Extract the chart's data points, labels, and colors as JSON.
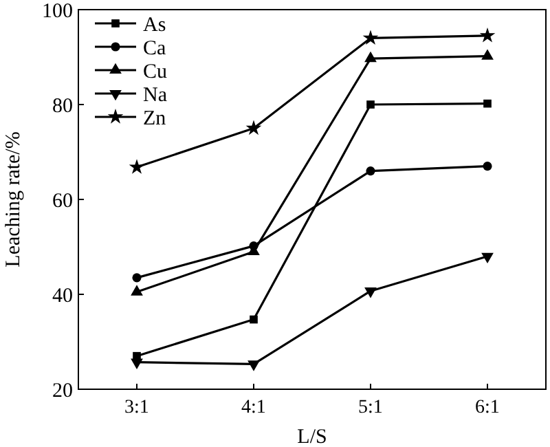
{
  "chart_data": {
    "type": "line",
    "xlabel": "L/S",
    "ylabel": "Leaching rate/%",
    "categories": [
      "3:1",
      "4:1",
      "5:1",
      "6:1"
    ],
    "ylim": [
      20,
      100
    ],
    "yticks": [
      20,
      40,
      60,
      80,
      100
    ],
    "legend": "top left",
    "grid": false,
    "series": [
      {
        "name": "As",
        "color": "#000000",
        "marker": "square",
        "values": [
          27,
          34.7,
          80,
          80.2
        ]
      },
      {
        "name": "Ca",
        "color": "#000000",
        "marker": "circle",
        "values": [
          43.5,
          50.2,
          66,
          67
        ]
      },
      {
        "name": "Cu",
        "color": "#000000",
        "marker": "triangle",
        "values": [
          40.5,
          49,
          89.7,
          90.2
        ]
      },
      {
        "name": "Na",
        "color": "#000000",
        "marker": "triangle-down",
        "values": [
          25.7,
          25.3,
          40.7,
          48
        ]
      },
      {
        "name": "Zn",
        "color": "#000000",
        "marker": "star",
        "values": [
          66.8,
          75,
          94,
          94.5
        ]
      }
    ]
  }
}
